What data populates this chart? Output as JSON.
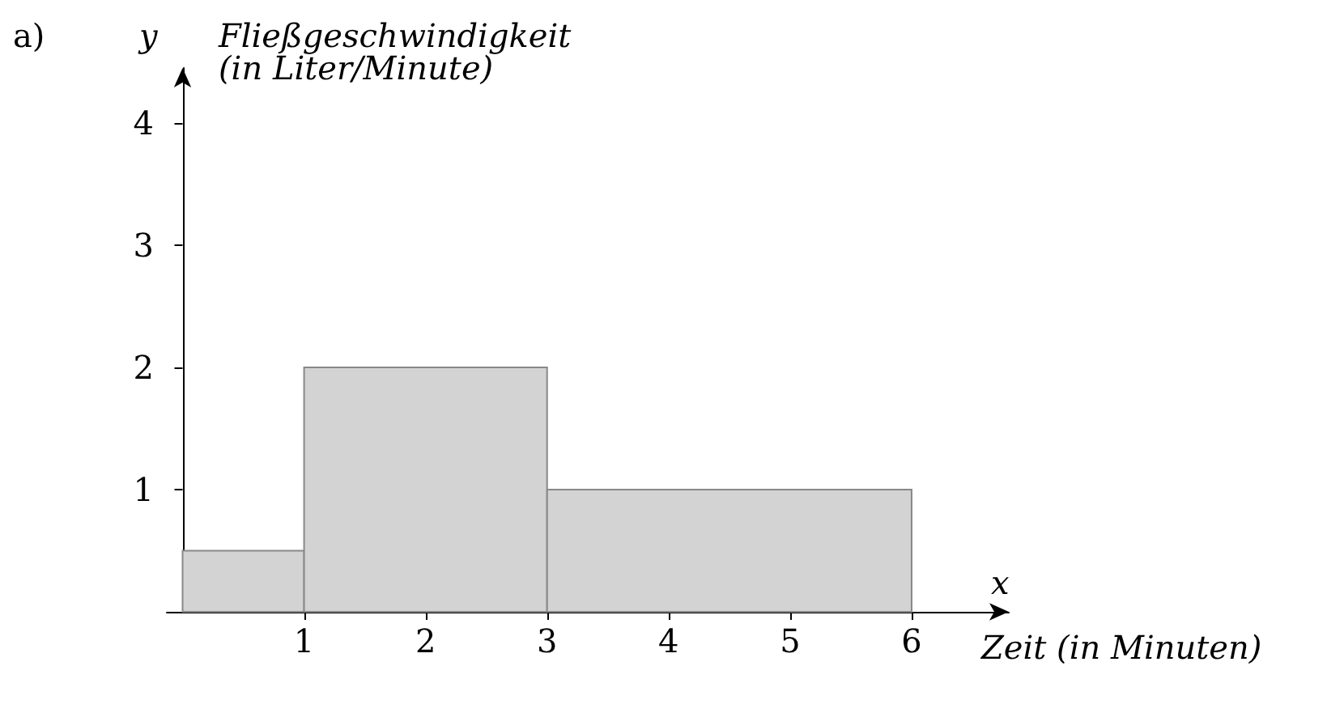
{
  "chart_data": {
    "type": "histogram",
    "title": "a)",
    "xlabel": "Zeit (in Minuten)",
    "ylabel": "Fließgeschwindigkeit (in Liter/Minute)",
    "annotations": [
      "x",
      "y"
    ],
    "bins": [
      0,
      1,
      3,
      6
    ],
    "values": [
      0.5,
      2,
      1
    ],
    "color": "#d3d3d3",
    "xlim": [
      -0.13,
      6.8
    ],
    "ylim": [
      0,
      4.45
    ],
    "xticks": [
      1,
      2,
      3,
      4,
      5,
      6
    ],
    "yticks": [
      1,
      2,
      3,
      4
    ]
  }
}
